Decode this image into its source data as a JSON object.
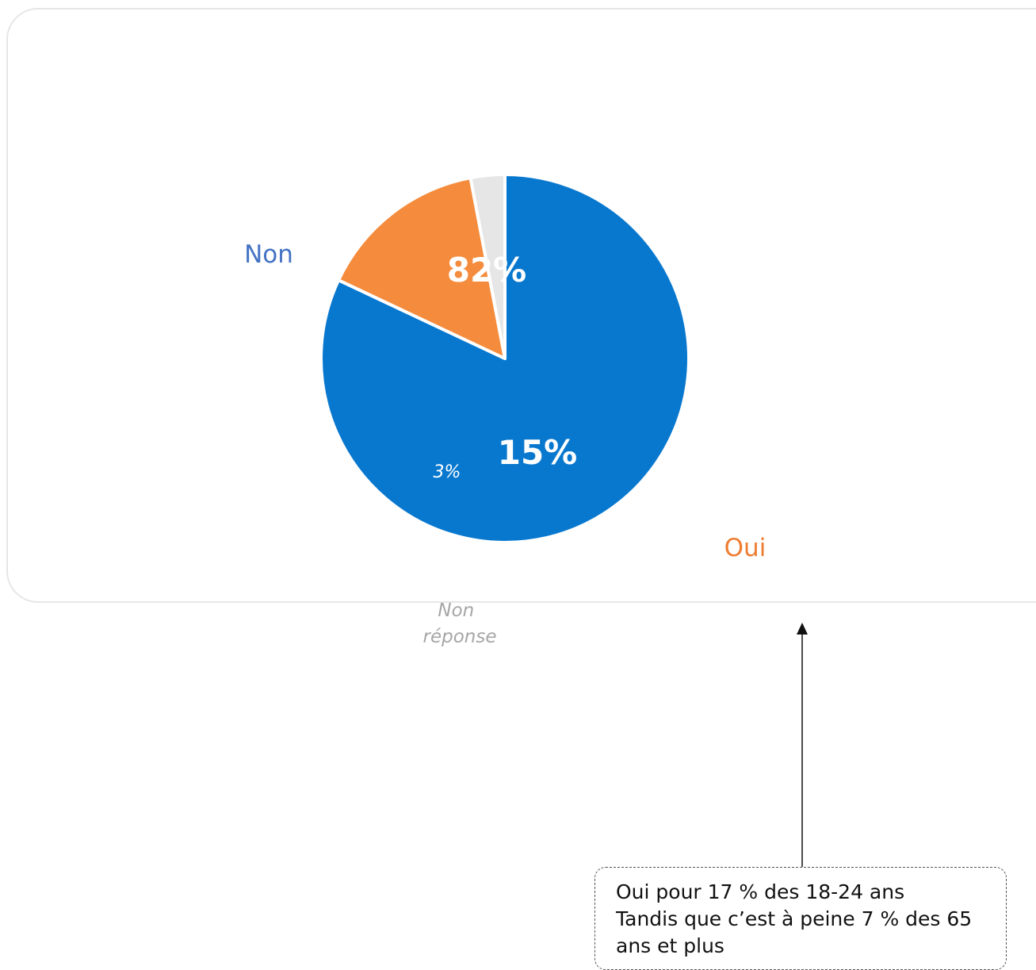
{
  "chart_data": {
    "type": "pie",
    "slices": [
      {
        "label": "Non",
        "value": 82,
        "value_label": "82%",
        "color": "#0878CF",
        "label_color": "#4472C4"
      },
      {
        "label": "Oui",
        "value": 15,
        "value_label": "15%",
        "color": "#F58B3C",
        "label_color": "#ED7D31"
      },
      {
        "label": "Non réponse",
        "value": 3,
        "value_label": "3%",
        "color": "#E6E6E6",
        "label_color": "#A6A6A6"
      }
    ]
  },
  "annotation": {
    "lines": [
      "Oui pour 17 % des 18-24 ans",
      "Tandis que c’est à peine 7 % des 65",
      "ans et plus"
    ]
  }
}
